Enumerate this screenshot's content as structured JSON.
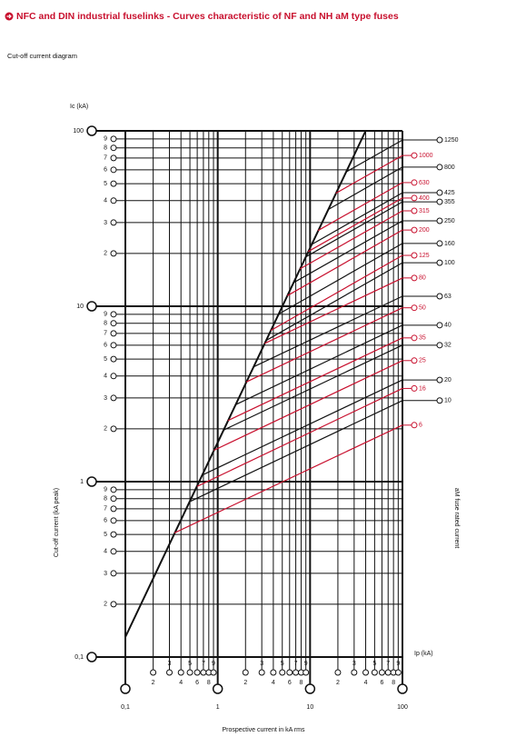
{
  "chart_data": {
    "type": "line",
    "title": "NFC and DIN industrial fuselinks - Curves characteristic of NF and NH aM type fuses",
    "subtitle": "Cut-off current diagram",
    "y_unit": "Ic (kA)",
    "x_unit": "Ip (kA)",
    "ylabel": "Cut-off current (kA peak)",
    "xlabel": "Prospective current in kA rms",
    "y2label": "aM fuse rated current",
    "log_scale": true,
    "grid": true,
    "xlim": [
      0.1,
      100
    ],
    "ylim": [
      0.1,
      100
    ],
    "xticks": [
      {
        "value": 0.1,
        "label": "0,1"
      },
      {
        "value": 0.2,
        "label": "2"
      },
      {
        "value": 0.3,
        "label": "3"
      },
      {
        "value": 0.4,
        "label": "4"
      },
      {
        "value": 0.5,
        "label": "5"
      },
      {
        "value": 0.6,
        "label": "6"
      },
      {
        "value": 0.7,
        "label": "7"
      },
      {
        "value": 0.8,
        "label": "8"
      },
      {
        "value": 0.9,
        "label": "9"
      },
      1,
      2,
      3,
      4,
      5,
      6,
      7,
      8,
      9,
      10,
      {
        "value": 20,
        "label": "2"
      },
      {
        "value": 30,
        "label": "3"
      },
      {
        "value": 40,
        "label": "4"
      },
      {
        "value": 50,
        "label": "5"
      },
      {
        "value": 60,
        "label": "6"
      },
      {
        "value": 70,
        "label": "7"
      },
      {
        "value": 80,
        "label": "8"
      },
      {
        "value": 90,
        "label": "9"
      },
      100
    ],
    "yticks": [
      {
        "value": 0.1,
        "label": "0,1"
      },
      {
        "value": 0.2,
        "label": "2"
      },
      {
        "value": 0.3,
        "label": "3"
      },
      {
        "value": 0.4,
        "label": "4"
      },
      {
        "value": 0.5,
        "label": "5"
      },
      {
        "value": 0.6,
        "label": "6"
      },
      {
        "value": 0.7,
        "label": "7"
      },
      {
        "value": 0.8,
        "label": "8"
      },
      {
        "value": 0.9,
        "label": "9"
      },
      1,
      2,
      3,
      4,
      5,
      6,
      7,
      8,
      9,
      10,
      {
        "value": 20,
        "label": "2"
      },
      {
        "value": 30,
        "label": "3"
      },
      {
        "value": 40,
        "label": "4"
      },
      {
        "value": 50,
        "label": "5"
      },
      {
        "value": 60,
        "label": "6"
      },
      {
        "value": 70,
        "label": "7"
      },
      {
        "value": 80,
        "label": "8"
      },
      {
        "value": 90,
        "label": "9"
      },
      100
    ],
    "series": [
      {
        "color": "#111111",
        "x": [
          0.1,
          40
        ],
        "values": [
          0.13,
          100
        ]
      },
      {
        "name": "1250",
        "color": "#111111",
        "x": [
          24.4,
          100
        ],
        "values": [
          58.2,
          88.7
        ]
      },
      {
        "name": "1000",
        "color": "#c8102e",
        "x": [
          19.0,
          100
        ],
        "values": [
          44.1,
          72.4
        ]
      },
      {
        "name": "800",
        "color": "#111111",
        "x": [
          15.7,
          100
        ],
        "values": [
          35.6,
          62.1
        ]
      },
      {
        "name": "630",
        "color": "#c8102e",
        "x": [
          12.2,
          100
        ],
        "values": [
          27.0,
          50.7
        ]
      },
      {
        "name": "425",
        "color": "#111111",
        "x": [
          10.4,
          100
        ],
        "values": [
          22.5,
          44.4
        ]
      },
      {
        "name": "400",
        "color": "#c8102e",
        "x": [
          9.53,
          100
        ],
        "values": [
          20.5,
          41.4
        ]
      },
      {
        "name": "355",
        "color": "#111111",
        "x": [
          8.95,
          100
        ],
        "values": [
          19.1,
          39.4
        ]
      },
      {
        "name": "315",
        "color": "#c8102e",
        "x": [
          7.74,
          100
        ],
        "values": [
          16.3,
          35.0
        ]
      },
      {
        "name": "250",
        "color": "#111111",
        "x": [
          6.59,
          100
        ],
        "values": [
          13.6,
          30.7
        ]
      },
      {
        "name": "200",
        "color": "#c8102e",
        "x": [
          5.68,
          100
        ],
        "values": [
          11.5,
          27.2
        ]
      },
      {
        "name": "160",
        "color": "#111111",
        "x": [
          4.56,
          100
        ],
        "values": [
          9.02,
          22.8
        ]
      },
      {
        "name": "125",
        "color": "#c8102e",
        "x": [
          3.76,
          100
        ],
        "values": [
          7.28,
          19.5
        ]
      },
      {
        "name": "100",
        "color": "#111111",
        "x": [
          3.34,
          100
        ],
        "values": [
          6.38,
          17.7
        ]
      },
      {
        "name": "80",
        "color": "#c8102e",
        "x": [
          3.22,
          100
        ],
        "values": [
          6.14,
          14.5
        ]
      },
      {
        "name": "63",
        "color": "#111111",
        "x": [
          2.44,
          100
        ],
        "values": [
          4.51,
          11.4
        ]
      },
      {
        "name": "50",
        "color": "#c8102e",
        "x": [
          2.04,
          100
        ],
        "values": [
          3.7,
          9.8
        ]
      },
      {
        "name": "40",
        "color": "#111111",
        "x": [
          1.57,
          100
        ],
        "values": [
          2.75,
          7.8
        ]
      },
      {
        "name": "35",
        "color": "#c8102e",
        "x": [
          1.29,
          100
        ],
        "values": [
          2.23,
          6.6
        ]
      },
      {
        "name": "32",
        "color": "#111111",
        "x": [
          1.16,
          100
        ],
        "values": [
          1.97,
          6.0
        ]
      },
      {
        "name": "25",
        "color": "#c8102e",
        "x": [
          0.91,
          100
        ],
        "values": [
          1.51,
          4.9
        ]
      },
      {
        "name": "20",
        "color": "#111111",
        "x": [
          0.68,
          100
        ],
        "values": [
          1.09,
          3.8
        ]
      },
      {
        "name": "16",
        "color": "#c8102e",
        "x": [
          0.6,
          100
        ],
        "values": [
          0.94,
          3.4
        ]
      },
      {
        "name": "10",
        "color": "#111111",
        "x": [
          0.5,
          100
        ],
        "values": [
          0.77,
          2.9
        ]
      },
      {
        "name": "6",
        "color": "#c8102e",
        "x": [
          0.34,
          100
        ],
        "values": [
          0.51,
          2.1
        ]
      }
    ]
  }
}
